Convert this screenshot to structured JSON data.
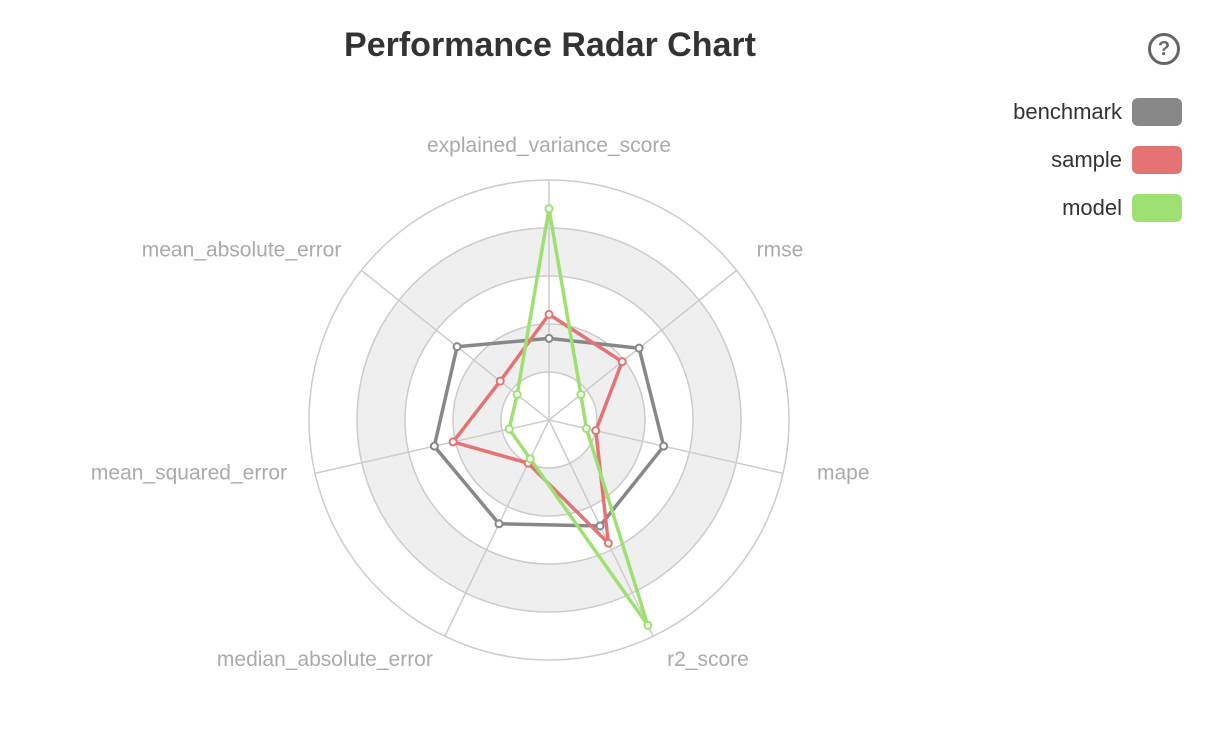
{
  "title": "Performance Radar Chart",
  "help_icon": "help-circle-icon",
  "chart_data": {
    "type": "radar",
    "title": "Performance Radar Chart",
    "indicators": [
      "explained_variance_score",
      "rmse",
      "mape",
      "r2_score",
      "median_absolute_error",
      "mean_squared_error",
      "mean_absolute_error"
    ],
    "max": 1.0,
    "split_number": 5,
    "legend_position": "top-right",
    "series": [
      {
        "name": "benchmark",
        "color": "#888888",
        "values": [
          0.34,
          0.48,
          0.49,
          0.49,
          0.48,
          0.49,
          0.49
        ]
      },
      {
        "name": "sample",
        "color": "#e57373",
        "values": [
          0.44,
          0.39,
          0.2,
          0.57,
          0.2,
          0.41,
          0.26
        ]
      },
      {
        "name": "model",
        "color": "#9ee072",
        "values": [
          0.88,
          0.17,
          0.16,
          0.95,
          0.18,
          0.17,
          0.17
        ]
      }
    ]
  }
}
